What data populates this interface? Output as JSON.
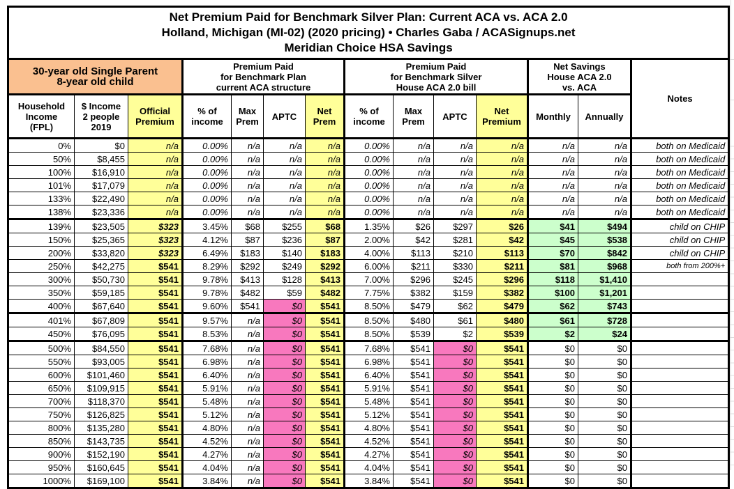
{
  "title": {
    "line1": "Net Premium Paid for Benchmark Silver Plan: Current ACA vs. ACA 2.0",
    "line2": "Holland, Michigan (MI-02) (2020 pricing) • Charles Gaba / ACASignups.net",
    "line3": "Meridian Choice HSA Savings"
  },
  "table": {
    "demographic_header": "30-year old Single Parent\n8-year old child",
    "groups": {
      "aca": "Premium Paid\nfor Benchmark Plan\ncurrent ACA structure",
      "aca2": "Premium Paid\nfor Benchmark Silver\nHouse ACA 2.0 bill",
      "savings": "Net Savings\nHouse ACA 2.0\nvs. ACA",
      "notes": "Notes"
    },
    "subheaders": {
      "fpl": "Household\nIncome\n(FPL)",
      "income": "$ Income\n2 people\n2019",
      "official": "Official\nPremium",
      "aca_pct": "% of\nincome",
      "aca_max": "Max\nPrem",
      "aca_aptc": "APTC",
      "aca_net": "Net\nPrem",
      "aca2_pct": "% of\nincome",
      "aca2_max": "Max\nPrem",
      "aca2_aptc": "APTC",
      "aca2_net": "Net\nPremium",
      "monthly": "Monthly",
      "annually": "Annually"
    }
  },
  "colors": {
    "orange": "#FAC090",
    "yellow": "#FFFF99",
    "pink": "#F878BE",
    "green": "#CCFFCC",
    "border": "#000000"
  },
  "chart_data": {
    "type": "table",
    "title": "Net Premium Paid for Benchmark Silver Plan: Current ACA vs. ACA 2.0 — Holland, Michigan (MI-02) (2020 pricing) — Meridian Choice HSA Savings",
    "columns": [
      "Household Income (FPL)",
      "$ Income 2 people 2019",
      "Official Premium",
      "ACA % of income",
      "ACA Max Prem",
      "ACA APTC",
      "ACA Net Prem",
      "ACA 2.0 % of income",
      "ACA 2.0 Max Prem",
      "ACA 2.0 APTC",
      "ACA 2.0 Net Premium",
      "Net Savings Monthly",
      "Net Savings Annually",
      "Notes"
    ],
    "rows": [
      [
        "0%",
        "$0",
        "n/a",
        "0.00%",
        "n/a",
        "n/a",
        "n/a",
        "0.00%",
        "n/a",
        "n/a",
        "n/a",
        "n/a",
        "n/a",
        "both on Medicaid"
      ],
      [
        "50%",
        "$8,455",
        "n/a",
        "0.00%",
        "n/a",
        "n/a",
        "n/a",
        "0.00%",
        "n/a",
        "n/a",
        "n/a",
        "n/a",
        "n/a",
        "both on Medicaid"
      ],
      [
        "100%",
        "$16,910",
        "n/a",
        "0.00%",
        "n/a",
        "n/a",
        "n/a",
        "0.00%",
        "n/a",
        "n/a",
        "n/a",
        "n/a",
        "n/a",
        "both on Medicaid"
      ],
      [
        "101%",
        "$17,079",
        "n/a",
        "0.00%",
        "n/a",
        "n/a",
        "n/a",
        "0.00%",
        "n/a",
        "n/a",
        "n/a",
        "n/a",
        "n/a",
        "both on Medicaid"
      ],
      [
        "133%",
        "$22,490",
        "n/a",
        "0.00%",
        "n/a",
        "n/a",
        "n/a",
        "0.00%",
        "n/a",
        "n/a",
        "n/a",
        "n/a",
        "n/a",
        "both on Medicaid"
      ],
      [
        "138%",
        "$23,336",
        "n/a",
        "0.00%",
        "n/a",
        "n/a",
        "n/a",
        "0.00%",
        "n/a",
        "n/a",
        "n/a",
        "n/a",
        "n/a",
        "both on Medicaid"
      ],
      [
        "139%",
        "$23,505",
        "$323",
        "3.45%",
        "$68",
        "$255",
        "$68",
        "1.35%",
        "$26",
        "$297",
        "$26",
        "$41",
        "$494",
        "child on CHIP"
      ],
      [
        "150%",
        "$25,365",
        "$323",
        "4.12%",
        "$87",
        "$236",
        "$87",
        "2.00%",
        "$42",
        "$281",
        "$42",
        "$45",
        "$538",
        "child on CHIP"
      ],
      [
        "200%",
        "$33,820",
        "$323",
        "6.49%",
        "$183",
        "$140",
        "$183",
        "4.00%",
        "$113",
        "$210",
        "$113",
        "$70",
        "$842",
        "child on CHIP"
      ],
      [
        "250%",
        "$42,275",
        "$541",
        "8.29%",
        "$292",
        "$249",
        "$292",
        "6.00%",
        "$211",
        "$330",
        "$211",
        "$81",
        "$968",
        "both from 200%+"
      ],
      [
        "300%",
        "$50,730",
        "$541",
        "9.78%",
        "$413",
        "$128",
        "$413",
        "7.00%",
        "$296",
        "$245",
        "$296",
        "$118",
        "$1,410",
        ""
      ],
      [
        "350%",
        "$59,185",
        "$541",
        "9.78%",
        "$482",
        "$59",
        "$482",
        "7.75%",
        "$382",
        "$159",
        "$382",
        "$100",
        "$1,201",
        ""
      ],
      [
        "400%",
        "$67,640",
        "$541",
        "9.60%",
        "$541",
        "$0",
        "$541",
        "8.50%",
        "$479",
        "$62",
        "$479",
        "$62",
        "$743",
        ""
      ],
      [
        "401%",
        "$67,809",
        "$541",
        "9.57%",
        "n/a",
        "$0",
        "$541",
        "8.50%",
        "$480",
        "$61",
        "$480",
        "$61",
        "$728",
        ""
      ],
      [
        "450%",
        "$76,095",
        "$541",
        "8.53%",
        "n/a",
        "$0",
        "$541",
        "8.50%",
        "$539",
        "$2",
        "$539",
        "$2",
        "$24",
        ""
      ],
      [
        "500%",
        "$84,550",
        "$541",
        "7.68%",
        "n/a",
        "$0",
        "$541",
        "7.68%",
        "$541",
        "$0",
        "$541",
        "$0",
        "$0",
        ""
      ],
      [
        "550%",
        "$93,005",
        "$541",
        "6.98%",
        "n/a",
        "$0",
        "$541",
        "6.98%",
        "$541",
        "$0",
        "$541",
        "$0",
        "$0",
        ""
      ],
      [
        "600%",
        "$101,460",
        "$541",
        "6.40%",
        "n/a",
        "$0",
        "$541",
        "6.40%",
        "$541",
        "$0",
        "$541",
        "$0",
        "$0",
        ""
      ],
      [
        "650%",
        "$109,915",
        "$541",
        "5.91%",
        "n/a",
        "$0",
        "$541",
        "5.91%",
        "$541",
        "$0",
        "$541",
        "$0",
        "$0",
        ""
      ],
      [
        "700%",
        "$118,370",
        "$541",
        "5.48%",
        "n/a",
        "$0",
        "$541",
        "5.48%",
        "$541",
        "$0",
        "$541",
        "$0",
        "$0",
        ""
      ],
      [
        "750%",
        "$126,825",
        "$541",
        "5.12%",
        "n/a",
        "$0",
        "$541",
        "5.12%",
        "$541",
        "$0",
        "$541",
        "$0",
        "$0",
        ""
      ],
      [
        "800%",
        "$135,280",
        "$541",
        "4.80%",
        "n/a",
        "$0",
        "$541",
        "4.80%",
        "$541",
        "$0",
        "$541",
        "$0",
        "$0",
        ""
      ],
      [
        "850%",
        "$143,735",
        "$541",
        "4.52%",
        "n/a",
        "$0",
        "$541",
        "4.52%",
        "$541",
        "$0",
        "$541",
        "$0",
        "$0",
        ""
      ],
      [
        "900%",
        "$152,190",
        "$541",
        "4.27%",
        "n/a",
        "$0",
        "$541",
        "4.27%",
        "$541",
        "$0",
        "$541",
        "$0",
        "$0",
        ""
      ],
      [
        "950%",
        "$160,645",
        "$541",
        "4.04%",
        "n/a",
        "$0",
        "$541",
        "4.04%",
        "$541",
        "$0",
        "$541",
        "$0",
        "$0",
        ""
      ],
      [
        "1000%",
        "$169,100",
        "$541",
        "3.84%",
        "n/a",
        "$0",
        "$541",
        "3.84%",
        "$541",
        "$0",
        "$541",
        "$0",
        "$0",
        ""
      ]
    ]
  }
}
